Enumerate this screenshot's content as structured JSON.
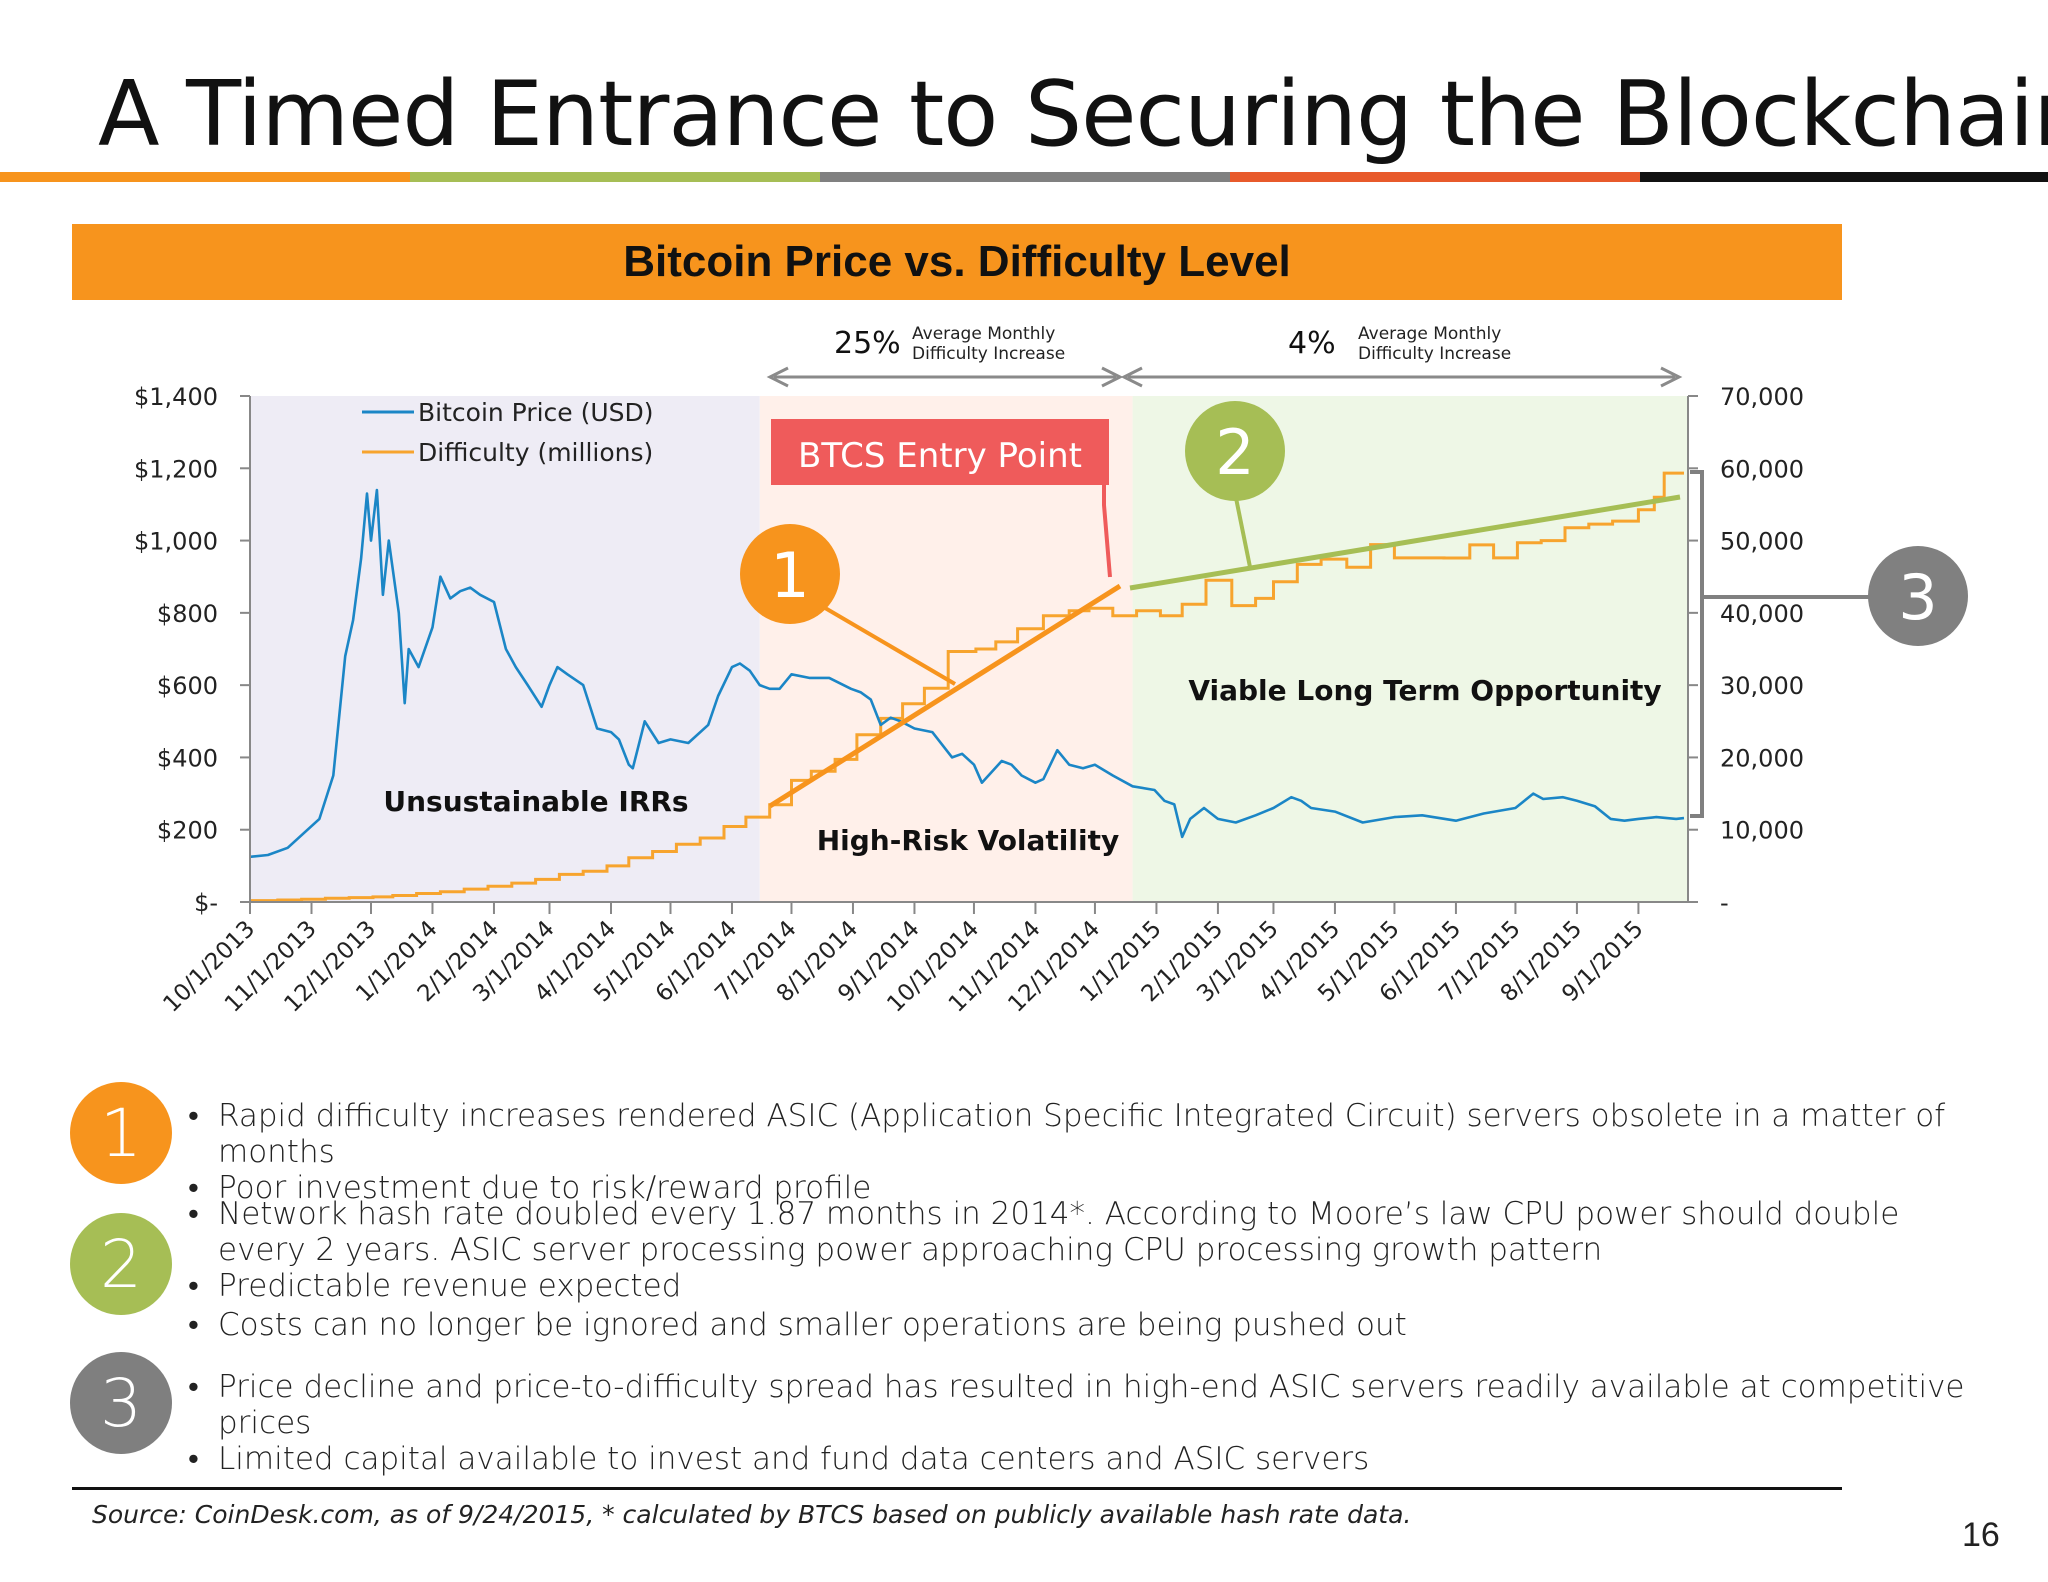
{
  "slide": {
    "title": "A Timed Entrance to Securing the Blockchain",
    "page_number": "16",
    "source": "Source:  CoinDesk.com, as of 9/24/2015, * calculated by BTCS based on publicly available hash rate data.",
    "rule_colors": [
      "#F7941D",
      "#A6BE55",
      "#808080",
      "#E85A2B",
      "#111111"
    ]
  },
  "chart_data": {
    "type": "line",
    "title": "Bitcoin Price vs. Difficulty Level",
    "x_ticks": [
      "10/1/2013",
      "11/1/2013",
      "12/1/2013",
      "1/1/2014",
      "2/1/2014",
      "3/1/2014",
      "4/1/2014",
      "5/1/2014",
      "6/1/2014",
      "7/1/2014",
      "8/1/2014",
      "9/1/2014",
      "10/1/2014",
      "11/1/2014",
      "12/1/2014",
      "1/1/2015",
      "2/1/2015",
      "3/1/2015",
      "4/1/2015",
      "5/1/2015",
      "6/1/2015",
      "7/1/2015",
      "8/1/2015",
      "9/1/2015"
    ],
    "y_left": {
      "ticks": [
        "$-",
        "$200",
        "$400",
        "$600",
        "$800",
        "$1,000",
        "$1,200",
        "$1,400"
      ],
      "min": 0,
      "max": 1400
    },
    "y_right": {
      "ticks": [
        "-",
        "10,000",
        "20,000",
        "30,000",
        "40,000",
        "50,000",
        "60,000",
        "70,000"
      ],
      "min": 0,
      "max": 70000
    },
    "legend": {
      "placement": "top-left",
      "items": [
        {
          "label": "Bitcoin Price (USD)",
          "color": "#1B86C6"
        },
        {
          "label": "Difficulty (millions)",
          "color": "#F7A42E"
        }
      ]
    },
    "series": [
      {
        "name": "Bitcoin Price (USD)",
        "axis": "left",
        "color": "#1B86C6",
        "points": [
          [
            "2013-10-01",
            125
          ],
          [
            "2013-10-10",
            130
          ],
          [
            "2013-10-20",
            150
          ],
          [
            "2013-10-28",
            190
          ],
          [
            "2013-11-05",
            230
          ],
          [
            "2013-11-12",
            350
          ],
          [
            "2013-11-18",
            680
          ],
          [
            "2013-11-22",
            780
          ],
          [
            "2013-11-26",
            950
          ],
          [
            "2013-11-29",
            1130
          ],
          [
            "2013-12-01",
            1000
          ],
          [
            "2013-12-04",
            1140
          ],
          [
            "2013-12-07",
            850
          ],
          [
            "2013-12-10",
            1000
          ],
          [
            "2013-12-15",
            800
          ],
          [
            "2013-12-18",
            550
          ],
          [
            "2013-12-20",
            700
          ],
          [
            "2013-12-25",
            650
          ],
          [
            "2014-01-01",
            760
          ],
          [
            "2014-01-05",
            900
          ],
          [
            "2014-01-10",
            840
          ],
          [
            "2014-01-15",
            860
          ],
          [
            "2014-01-20",
            870
          ],
          [
            "2014-01-25",
            850
          ],
          [
            "2014-02-01",
            830
          ],
          [
            "2014-02-07",
            700
          ],
          [
            "2014-02-12",
            650
          ],
          [
            "2014-02-18",
            600
          ],
          [
            "2014-02-25",
            540
          ],
          [
            "2014-03-01",
            600
          ],
          [
            "2014-03-05",
            650
          ],
          [
            "2014-03-10",
            630
          ],
          [
            "2014-03-18",
            600
          ],
          [
            "2014-03-25",
            480
          ],
          [
            "2014-04-01",
            470
          ],
          [
            "2014-04-05",
            450
          ],
          [
            "2014-04-10",
            380
          ],
          [
            "2014-04-12",
            370
          ],
          [
            "2014-04-18",
            500
          ],
          [
            "2014-04-25",
            440
          ],
          [
            "2014-05-01",
            450
          ],
          [
            "2014-05-10",
            440
          ],
          [
            "2014-05-20",
            490
          ],
          [
            "2014-05-25",
            570
          ],
          [
            "2014-06-01",
            650
          ],
          [
            "2014-06-05",
            660
          ],
          [
            "2014-06-10",
            640
          ],
          [
            "2014-06-15",
            600
          ],
          [
            "2014-06-20",
            590
          ],
          [
            "2014-06-25",
            590
          ],
          [
            "2014-07-01",
            630
          ],
          [
            "2014-07-10",
            620
          ],
          [
            "2014-07-20",
            620
          ],
          [
            "2014-07-31",
            590
          ],
          [
            "2014-08-05",
            580
          ],
          [
            "2014-08-10",
            560
          ],
          [
            "2014-08-15",
            490
          ],
          [
            "2014-08-20",
            510
          ],
          [
            "2014-08-25",
            500
          ],
          [
            "2014-09-01",
            480
          ],
          [
            "2014-09-10",
            470
          ],
          [
            "2014-09-20",
            400
          ],
          [
            "2014-09-25",
            410
          ],
          [
            "2014-10-01",
            380
          ],
          [
            "2014-10-05",
            330
          ],
          [
            "2014-10-10",
            360
          ],
          [
            "2014-10-15",
            390
          ],
          [
            "2014-10-20",
            380
          ],
          [
            "2014-10-25",
            350
          ],
          [
            "2014-11-01",
            330
          ],
          [
            "2014-11-05",
            340
          ],
          [
            "2014-11-12",
            420
          ],
          [
            "2014-11-18",
            380
          ],
          [
            "2014-11-25",
            370
          ],
          [
            "2014-12-01",
            380
          ],
          [
            "2014-12-10",
            350
          ],
          [
            "2014-12-20",
            320
          ],
          [
            "2014-12-31",
            310
          ],
          [
            "2015-01-05",
            280
          ],
          [
            "2015-01-10",
            270
          ],
          [
            "2015-01-14",
            180
          ],
          [
            "2015-01-18",
            230
          ],
          [
            "2015-01-25",
            260
          ],
          [
            "2015-02-01",
            230
          ],
          [
            "2015-02-10",
            220
          ],
          [
            "2015-02-20",
            240
          ],
          [
            "2015-03-01",
            260
          ],
          [
            "2015-03-10",
            290
          ],
          [
            "2015-03-15",
            280
          ],
          [
            "2015-03-20",
            260
          ],
          [
            "2015-04-01",
            250
          ],
          [
            "2015-04-15",
            220
          ],
          [
            "2015-05-01",
            235
          ],
          [
            "2015-05-15",
            240
          ],
          [
            "2015-06-01",
            225
          ],
          [
            "2015-06-15",
            245
          ],
          [
            "2015-07-01",
            260
          ],
          [
            "2015-07-10",
            300
          ],
          [
            "2015-07-15",
            285
          ],
          [
            "2015-07-25",
            290
          ],
          [
            "2015-08-01",
            280
          ],
          [
            "2015-08-10",
            265
          ],
          [
            "2015-08-18",
            230
          ],
          [
            "2015-08-25",
            225
          ],
          [
            "2015-09-01",
            230
          ],
          [
            "2015-09-10",
            235
          ],
          [
            "2015-09-20",
            230
          ],
          [
            "2015-09-24",
            232
          ]
        ]
      },
      {
        "name": "Difficulty (millions)",
        "axis": "right",
        "color": "#F7A42E",
        "steps": [
          [
            "2013-10-01",
            190
          ],
          [
            "2013-10-15",
            270
          ],
          [
            "2013-10-27",
            390
          ],
          [
            "2013-11-08",
            510
          ],
          [
            "2013-11-20",
            610
          ],
          [
            "2013-12-02",
            700
          ],
          [
            "2013-12-12",
            900
          ],
          [
            "2013-12-24",
            1180
          ],
          [
            "2014-01-05",
            1420
          ],
          [
            "2014-01-17",
            1790
          ],
          [
            "2014-01-29",
            2190
          ],
          [
            "2014-02-10",
            2620
          ],
          [
            "2014-02-22",
            3130
          ],
          [
            "2014-03-06",
            3820
          ],
          [
            "2014-03-18",
            4250
          ],
          [
            "2014-03-30",
            5000
          ],
          [
            "2014-04-10",
            6120
          ],
          [
            "2014-04-22",
            6980
          ],
          [
            "2014-05-04",
            8000
          ],
          [
            "2014-05-16",
            8850
          ],
          [
            "2014-05-28",
            10450
          ],
          [
            "2014-06-08",
            11750
          ],
          [
            "2014-06-20",
            13460
          ],
          [
            "2014-07-01",
            16820
          ],
          [
            "2014-07-11",
            18100
          ],
          [
            "2014-07-23",
            19730
          ],
          [
            "2014-08-03",
            23140
          ],
          [
            "2014-08-15",
            25400
          ],
          [
            "2014-08-26",
            27430
          ],
          [
            "2014-09-06",
            29570
          ],
          [
            "2014-09-18",
            34660
          ],
          [
            "2014-10-02",
            35000
          ],
          [
            "2014-10-12",
            35985
          ],
          [
            "2014-10-23",
            37800
          ],
          [
            "2014-11-05",
            39600
          ],
          [
            "2014-11-18",
            40300
          ],
          [
            "2014-11-28",
            40640
          ],
          [
            "2014-12-10",
            39600
          ],
          [
            "2014-12-22",
            40300
          ],
          [
            "2015-01-03",
            39600
          ],
          [
            "2015-01-14",
            41200
          ],
          [
            "2015-01-26",
            44500
          ],
          [
            "2015-02-08",
            41000
          ],
          [
            "2015-02-20",
            42000
          ],
          [
            "2015-03-01",
            44300
          ],
          [
            "2015-03-13",
            46700
          ],
          [
            "2015-03-25",
            47430
          ],
          [
            "2015-04-07",
            46300
          ],
          [
            "2015-04-19",
            49440
          ],
          [
            "2015-05-01",
            47600
          ],
          [
            "2015-05-14",
            47600
          ],
          [
            "2015-05-26",
            47590
          ],
          [
            "2015-06-08",
            49400
          ],
          [
            "2015-06-20",
            47600
          ],
          [
            "2015-07-02",
            49690
          ],
          [
            "2015-07-14",
            50000
          ],
          [
            "2015-07-26",
            51770
          ],
          [
            "2015-08-07",
            52280
          ],
          [
            "2015-08-19",
            52700
          ],
          [
            "2015-09-01",
            54260
          ],
          [
            "2015-09-09",
            56000
          ],
          [
            "2015-09-14",
            59340
          ],
          [
            "2015-09-24",
            59340
          ]
        ]
      }
    ],
    "regions": [
      {
        "label": "Unsustainable IRRs",
        "color": "#EEECF5"
      },
      {
        "label": "High-Risk Volatility",
        "color": "#FFF0EA"
      },
      {
        "label": "Viable Long Term Opportunity",
        "color": "#EEF7E6"
      }
    ],
    "annotations": {
      "growth_left_pct": "25%",
      "growth_right_pct": "4%",
      "growth_caption_line1": "Average Monthly",
      "growth_caption_line2": "Difficulty Increase",
      "entry_point": "BTCS Entry Point",
      "circle_1": "1",
      "circle_2": "2",
      "circle_3": "3"
    }
  },
  "sections": [
    {
      "number": "1",
      "color": "#F7941D",
      "bullets": [
        "Rapid difficulty increases rendered ASIC (Application Specific Integrated Circuit) servers  obsolete in a matter of months",
        "Poor investment due to risk/reward profile"
      ]
    },
    {
      "number": "2",
      "color": "#A6BE55",
      "bullets": [
        "Network hash rate doubled every 1.87 months in 2014*.  According to Moore’s law CPU power should double every 2 years.  ASIC server processing power approaching CPU processing growth pattern",
        "Predictable revenue expected",
        "Costs can no longer be ignored and smaller operations are being pushed out"
      ]
    },
    {
      "number": "3",
      "color": "#7F7F7F",
      "bullets": [
        "Price decline and price-to-difficulty spread has resulted in high-end ASIC servers readily available at competitive prices",
        "Limited capital available to invest and fund data centers and ASIC servers"
      ]
    }
  ]
}
